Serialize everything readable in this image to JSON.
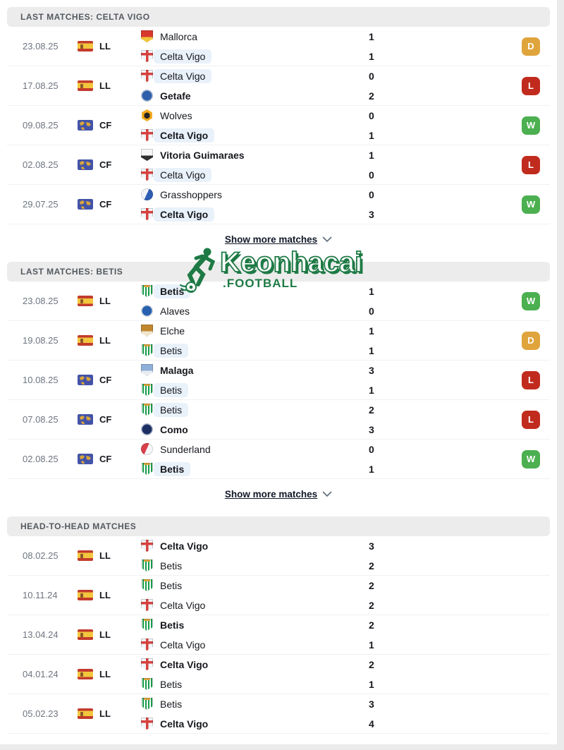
{
  "page": {
    "background": "#ffffff",
    "edge_strip_color": "#ebebeb",
    "header_bar_color": "#ececec",
    "highlight_pill_color": "#e9f1fa"
  },
  "badge_colors": {
    "W": "#4caf50",
    "D": "#dfa43c",
    "L": "#c12b1e"
  },
  "watermark": {
    "title": "Keonhacai",
    "subtitle": ".FOOTBALL",
    "color": "#1e7a45"
  },
  "competition_icons": {
    "LL": {
      "icon": "spain-flag-icon"
    },
    "CF": {
      "icon": "club-friendly-world-icon"
    }
  },
  "teams": {
    "Mallorca": {
      "shape": "shield",
      "c1": "#d8392e",
      "c2": "#f2c33c"
    },
    "Celta Vigo": {
      "shape": "cross",
      "c1": "#f2f5f9",
      "c2": "#d5413e"
    },
    "Getafe": {
      "shape": "circle",
      "c1": "#2e5faa",
      "c2": "#cfdcef"
    },
    "Wolves": {
      "shape": "hex",
      "c1": "#f2a71b",
      "c2": "#2a2423"
    },
    "Vitoria Guimaraes": {
      "shape": "shield",
      "c1": "#f5f5f5",
      "c2": "#2e2e2e"
    },
    "Grasshoppers": {
      "shape": "circle-split",
      "c1": "#f2f4f8",
      "c2": "#2f5db5"
    },
    "Betis": {
      "shape": "stripes",
      "c1": "#159a49",
      "c2": "#ffffff"
    },
    "Alaves": {
      "shape": "circle",
      "c1": "#2760ae",
      "c2": "#f4f6fa"
    },
    "Elche": {
      "shape": "shield",
      "c1": "#c0872f",
      "c2": "#f0e6cd"
    },
    "Malaga": {
      "shape": "shield",
      "c1": "#8fb0d8",
      "c2": "#e8ecf2"
    },
    "Como": {
      "shape": "circle",
      "c1": "#1b2f63",
      "c2": "#cfd8ea"
    },
    "Sunderland": {
      "shape": "circle-split",
      "c1": "#d8404a",
      "c2": "#f6f7f9"
    }
  },
  "sections": [
    {
      "header": "LAST MATCHES: CELTA VIGO",
      "show_more": "Show more matches",
      "has_badges": true,
      "matches": [
        {
          "date": "23.08.25",
          "comp": "LL",
          "result": "D",
          "home": {
            "name": "Mallorca",
            "score": "1",
            "bold": false,
            "highlight": false
          },
          "away": {
            "name": "Celta Vigo",
            "score": "1",
            "bold": false,
            "highlight": true
          }
        },
        {
          "date": "17.08.25",
          "comp": "LL",
          "result": "L",
          "home": {
            "name": "Celta Vigo",
            "score": "0",
            "bold": false,
            "highlight": true
          },
          "away": {
            "name": "Getafe",
            "score": "2",
            "bold": true,
            "highlight": false
          }
        },
        {
          "date": "09.08.25",
          "comp": "CF",
          "result": "W",
          "home": {
            "name": "Wolves",
            "score": "0",
            "bold": false,
            "highlight": false
          },
          "away": {
            "name": "Celta Vigo",
            "score": "1",
            "bold": true,
            "highlight": true
          }
        },
        {
          "date": "02.08.25",
          "comp": "CF",
          "result": "L",
          "home": {
            "name": "Vitoria Guimaraes",
            "score": "1",
            "bold": true,
            "highlight": false
          },
          "away": {
            "name": "Celta Vigo",
            "score": "0",
            "bold": false,
            "highlight": true
          }
        },
        {
          "date": "29.07.25",
          "comp": "CF",
          "result": "W",
          "home": {
            "name": "Grasshoppers",
            "score": "0",
            "bold": false,
            "highlight": false
          },
          "away": {
            "name": "Celta Vigo",
            "score": "3",
            "bold": true,
            "highlight": true
          }
        }
      ]
    },
    {
      "header": "LAST MATCHES: BETIS",
      "show_more": "Show more matches",
      "has_badges": true,
      "matches": [
        {
          "date": "23.08.25",
          "comp": "LL",
          "result": "W",
          "home": {
            "name": "Betis",
            "score": "1",
            "bold": true,
            "highlight": true
          },
          "away": {
            "name": "Alaves",
            "score": "0",
            "bold": false,
            "highlight": false
          }
        },
        {
          "date": "19.08.25",
          "comp": "LL",
          "result": "D",
          "home": {
            "name": "Elche",
            "score": "1",
            "bold": false,
            "highlight": false
          },
          "away": {
            "name": "Betis",
            "score": "1",
            "bold": false,
            "highlight": true
          }
        },
        {
          "date": "10.08.25",
          "comp": "CF",
          "result": "L",
          "home": {
            "name": "Malaga",
            "score": "3",
            "bold": true,
            "highlight": false
          },
          "away": {
            "name": "Betis",
            "score": "1",
            "bold": false,
            "highlight": true
          }
        },
        {
          "date": "07.08.25",
          "comp": "CF",
          "result": "L",
          "home": {
            "name": "Betis",
            "score": "2",
            "bold": false,
            "highlight": true
          },
          "away": {
            "name": "Como",
            "score": "3",
            "bold": true,
            "highlight": false
          }
        },
        {
          "date": "02.08.25",
          "comp": "CF",
          "result": "W",
          "home": {
            "name": "Sunderland",
            "score": "0",
            "bold": false,
            "highlight": false
          },
          "away": {
            "name": "Betis",
            "score": "1",
            "bold": true,
            "highlight": true
          }
        }
      ]
    },
    {
      "header": "HEAD-TO-HEAD MATCHES",
      "show_more": null,
      "has_badges": false,
      "matches": [
        {
          "date": "08.02.25",
          "comp": "LL",
          "result": null,
          "home": {
            "name": "Celta Vigo",
            "score": "3",
            "bold": true,
            "highlight": false
          },
          "away": {
            "name": "Betis",
            "score": "2",
            "bold": false,
            "highlight": false
          }
        },
        {
          "date": "10.11.24",
          "comp": "LL",
          "result": null,
          "home": {
            "name": "Betis",
            "score": "2",
            "bold": false,
            "highlight": false
          },
          "away": {
            "name": "Celta Vigo",
            "score": "2",
            "bold": false,
            "highlight": false
          }
        },
        {
          "date": "13.04.24",
          "comp": "LL",
          "result": null,
          "home": {
            "name": "Betis",
            "score": "2",
            "bold": true,
            "highlight": false
          },
          "away": {
            "name": "Celta Vigo",
            "score": "1",
            "bold": false,
            "highlight": false
          }
        },
        {
          "date": "04.01.24",
          "comp": "LL",
          "result": null,
          "home": {
            "name": "Celta Vigo",
            "score": "2",
            "bold": true,
            "highlight": false
          },
          "away": {
            "name": "Betis",
            "score": "1",
            "bold": false,
            "highlight": false
          }
        },
        {
          "date": "05.02.23",
          "comp": "LL",
          "result": null,
          "home": {
            "name": "Betis",
            "score": "3",
            "bold": false,
            "highlight": false
          },
          "away": {
            "name": "Celta Vigo",
            "score": "4",
            "bold": true,
            "highlight": false
          }
        }
      ]
    }
  ]
}
